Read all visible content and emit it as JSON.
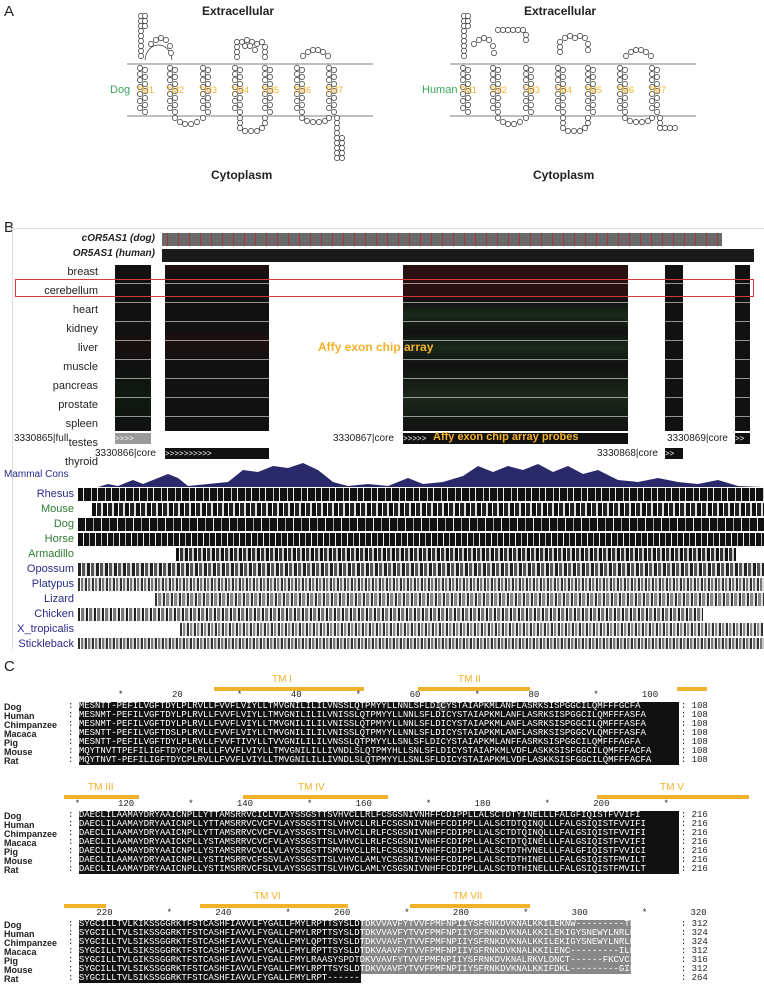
{
  "panelA": {
    "letter": "A",
    "left": {
      "top_label": "Extracellular",
      "bottom_label": "Cytoplasm",
      "species": "Dog"
    },
    "right": {
      "top_label": "Extracellular",
      "bottom_label": "Cytoplasm",
      "species": "Human"
    }
  },
  "panelB": {
    "letter": "B",
    "gene_dog": "cOR5AS1 (dog)",
    "gene_human": "OR5AS1 (human)",
    "tissues": [
      "breast",
      "cerebellum",
      "heart",
      "kidney",
      "liver",
      "muscle",
      "pancreas",
      "prostate",
      "spleen",
      "testes",
      "thyroid"
    ],
    "array_label": "Affy exon chip array",
    "probe_label": "Affy exon chip array probes",
    "probes": [
      "3330865|full",
      "3330866|core",
      "3330867|core",
      "3330868|core",
      "3330869|core"
    ],
    "cons_label": "Mammal Cons",
    "species_tracks": [
      {
        "name": "Rhesus",
        "color": "#2a2a8a"
      },
      {
        "name": "Mouse",
        "color": "#2e7d32"
      },
      {
        "name": "Dog",
        "color": "#2e7d32"
      },
      {
        "name": "Horse",
        "color": "#2e7d32"
      },
      {
        "name": "Armadillo",
        "color": "#2e7d32"
      },
      {
        "name": "Opossum",
        "color": "#2a2a8a"
      },
      {
        "name": "Platypus",
        "color": "#2a2a8a"
      },
      {
        "name": "Lizard",
        "color": "#2a2a8a"
      },
      {
        "name": "Chicken",
        "color": "#2a2a8a"
      },
      {
        "name": "X_tropicalis",
        "color": "#2a2a8a"
      },
      {
        "name": "Stickleback",
        "color": "#2a2a8a"
      }
    ]
  },
  "panelC": {
    "letter": "C",
    "species": [
      "Dog",
      "Human",
      "Chimpanzee",
      "Macaca",
      "Pig",
      "Mouse",
      "Rat"
    ],
    "block1": {
      "tm": [
        "TM I",
        "TM II"
      ],
      "ruler": "          *         20          *         40          *         60          *         80          *        100",
      "rows": [
        "MESNTT-PEFILVGFTDYLPLRVLLFVVFLVIYLLTMVGNILILILVNSSLQTPMYYLLNNLSFLDICYSTAIAPKMLANFLASRKSISPGGCILQMFFFGCFA",
        "MESNMT-PEFILVGFTDYLPLRVLLFVVFLVIYLLTMVGNILILILVNISSLQTPMYYLLNNLSFLDICYSTAIAPKMLANFLASRKSISPGGCILQMFFFASFA",
        "MESNMT-PEFILVGFTDYLPLRVLLFVVFLVIYLLTMVGNILILILVNISSLQTPMYYLLNNLSFLDICYSTAIAPKMLANFLASRKSISPGGCILQMFFFASFA",
        "MESNTT-PEFILVGFTDSLPLRVLLFVVFLVIYLLTMVGNILILILVNISSLQTPMYYLLNNLSFLDICYSTAIAPKMLANFLASRKSISPGGCVLQMFFFASFA",
        "MESNTT-PEFILVGFTDYLPLRVLLFVVFTIVYLLTVVGNILILILVNSSLQTPMYYLLSNLSFLDICYSTAIAPKMLANFFASRKSISPGGCILQMFFFAGFA",
        "MQYTNVTTPEFILIGFTDYCPLRLLLFVVFLVIYLLTMVGNILILLIVNDLSLQTPMYHLLSNLSFLDICYSTAIAPKMLVDFLASKKSISFGGCILQMFFFACFA",
        "MQYTNVT-PEFILIGFTDYCPLRVLLFVVFLVIYLLTMVGNILILLIVNDLSLQTPMYYLLSNLSFLDICYSTAIAPKMLVDFLASKKSISFGGCILQMFFFACFA"
      ],
      "ends": [
        "108",
        "108",
        "108",
        "108",
        "108",
        "108",
        "108"
      ]
    },
    "block2": {
      "tm": [
        "TM III",
        "TM IV",
        "TM V"
      ],
      "ruler": "  *       120          *        140          *        160          *        180          *        200          *",
      "rows": [
        "DAECLILAAMAYDRYAAICNPLLYTTAMSRRVCICLVLAYSSGSTTSVHVCLLRLFCSGSNIVNHFFCDIPPLLALSCTDTYINELLLFALGFIQISTFVVIFI",
        "DAECLILAAMAYDRYAAICNPLLYTTAMSRRVCVCFVLAYSSGSTTSLVHVCLLRLFCSGSNIVNHFFCDIPPLLALSCTDTQINQLLLFALGSIQISTFVVIFI",
        "DAECLILAAMAYDRYAAICNPLLYTTAMSRRVCVCFVLAYSSGSTTSLVHVCLLRLFCSGSNIVNHFFCDIPPLLALSCTDTQINQLLLFALGSIQISTFVVIFI",
        "DAECLILAAMAYDRYAAICKPLLYSTAMSRRVCVCFVLAYSSGSTTSLVHVCLLRLFCSGSNIVNHFFCDIPPLLALSCTDTQINELLLFALGSIQISTFVVIFI",
        "DAECLILAAMAYDRYAAICNPLLYSTAMSRRVCVCLVLAYSSGSTTSMVHVCLLRLFCSGSNIVNHFFCDIPPLLALSCTDTHVNELLLFALGFIQISTFVVICI",
        "DAECLILAAMAYDRYAAICNPLLYSTIMSRRVCFSSVLAYSSGSTTSLVHVCLAMLYCSGSNIVNHFFCDIPPLLALSCTDTHINELLLFALGSIQISTFMVILT",
        "DAECLILAAMAYDRYAAICNPLLYSTIMSRRVCFSLVLAYSSGSTTSLVHVCLAMLYCSGSNIVNHFFCDIPPLLALSCTDTHINELLLFALGSIQISTFMVILT"
      ],
      "ends": [
        "216",
        "216",
        "216",
        "216",
        "216",
        "216",
        "216"
      ]
    },
    "block3": {
      "tm": [
        "TM VI",
        "TM VII"
      ],
      "ruler": "      220          *        240          *        260          *        280          *        300          *        320",
      "rows": [
        "SYGCILLTVLKIKSSGGRKTFSTCASHFIAVVLFYGALLFMYLRPTTSYSLDTDKVVAVFYTVVFPMFNPIIYSFRNKDVKNALKKILEKNW---------TFK",
        "SYGCILLTVLSIKSSGGRKTFSTCASHFIAVVLFYGALLFMYLRPTTSYSLDTDKVVAVFYTVVFPMFNPIIYSFRNKDVKNALKKILEKIGYSNEWYLNRLRIVNI",
        "SYGCILLTVLSIKSSGGRKTFSTCASHFIAVVLFYGALLFMYLQPTTSYSLDTDKVVAVFYTVVFPMFNPIIYSFRNKDVKNALKKILEKIGYSNEWYLNRLRIVNI",
        "SYGCILLTVLSIKSSGGRKTFSTCASHFIAVVLFYGALLFMYLRPTTSYSLDTDKVAAVFYTVVFPMFNPIIYSFRNKDVKNALKKILENC---------ILK",
        "SYGCILLTVLGIKSSGGRKTFSTCASHFIAVVLFYGALLFMYLRAASYSPDTDKVVAVFYTVVFPMFNPIIYSFRNKDVKNALRKVLDNCT------FKCVCL",
        "SYGCILLTVLSIKSSGGRKTFSTCASHFIAVVLFYGALLFMYLRPTTSYSLDTDKVVAVFYTVVFPMFNPIIYSFRNKDVKNALKKIFDKL---------GIFR",
        "SYGCILLTVLSIKSSGGRKTFSTCASHFIAVVLFYGALLFMYLRPT-------------------------------------------------------------"
      ],
      "ends": [
        "312",
        "324",
        "324",
        "312",
        "316",
        "312",
        "264"
      ]
    }
  }
}
